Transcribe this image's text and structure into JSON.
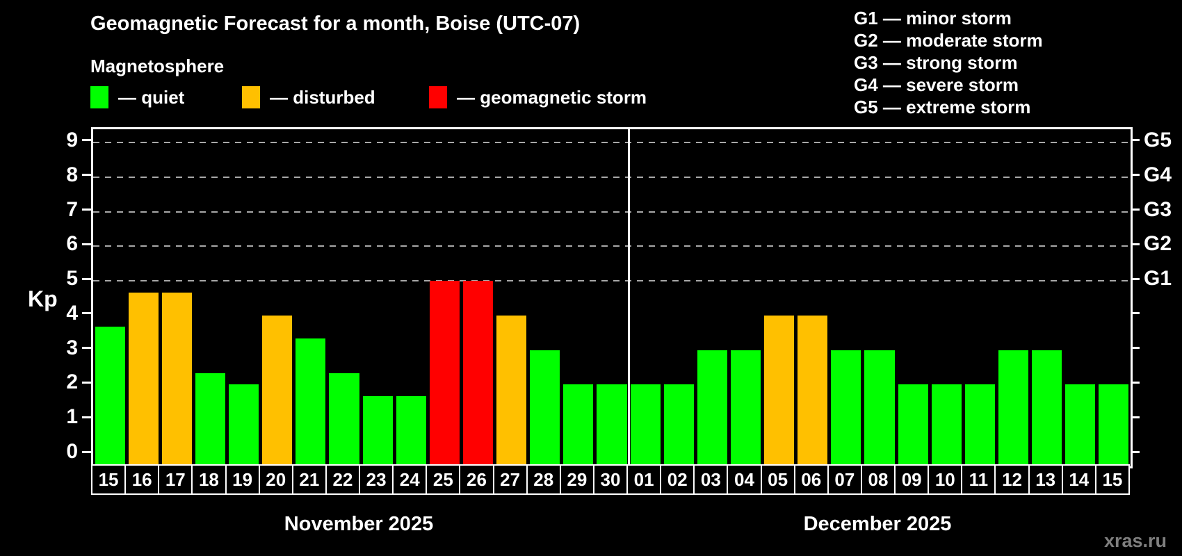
{
  "title": "Geomagnetic Forecast for a month, Boise (UTC-07)",
  "subtitle": "Magnetosphere",
  "watermark": "xras.ru",
  "colors": {
    "quiet": "#00ff00",
    "disturbed": "#ffc000",
    "storm": "#ff0000",
    "background": "#000000",
    "grid": "#a8a8a8",
    "axis": "#ffffff",
    "watermark": "#7f7f7f"
  },
  "legend": {
    "items": [
      {
        "key": "quiet",
        "label": "— quiet"
      },
      {
        "key": "disturbed",
        "label": "— disturbed"
      },
      {
        "key": "storm",
        "label": "— geomagnetic storm"
      }
    ]
  },
  "g_legend": {
    "items": [
      {
        "label": "G1 — minor storm"
      },
      {
        "label": "G2 — moderate storm"
      },
      {
        "label": "G3 — strong storm"
      },
      {
        "label": "G4 — severe storm"
      },
      {
        "label": "G5 — extreme storm"
      }
    ]
  },
  "y_axis": {
    "label": "Kp",
    "ticks": [
      0,
      1,
      2,
      3,
      4,
      5,
      6,
      7,
      8,
      9
    ]
  },
  "right_axis": {
    "tick_kps": [
      0,
      1,
      2,
      3,
      4,
      5,
      6,
      7,
      8,
      9
    ],
    "labels": [
      {
        "kp": 5,
        "label": "G1"
      },
      {
        "kp": 6,
        "label": "G2"
      },
      {
        "kp": 7,
        "label": "G3"
      },
      {
        "kp": 8,
        "label": "G4"
      },
      {
        "kp": 9,
        "label": "G5"
      }
    ]
  },
  "months": [
    {
      "label": "November 2025",
      "days": [
        {
          "day": "15",
          "kp": 3.67,
          "status": "quiet"
        },
        {
          "day": "16",
          "kp": 4.67,
          "status": "disturbed"
        },
        {
          "day": "17",
          "kp": 4.67,
          "status": "disturbed"
        },
        {
          "day": "18",
          "kp": 2.33,
          "status": "quiet"
        },
        {
          "day": "19",
          "kp": 2.0,
          "status": "quiet"
        },
        {
          "day": "20",
          "kp": 4.0,
          "status": "disturbed"
        },
        {
          "day": "21",
          "kp": 3.33,
          "status": "quiet"
        },
        {
          "day": "22",
          "kp": 2.33,
          "status": "quiet"
        },
        {
          "day": "23",
          "kp": 1.67,
          "status": "quiet"
        },
        {
          "day": "24",
          "kp": 1.67,
          "status": "quiet"
        },
        {
          "day": "25",
          "kp": 5.0,
          "status": "storm"
        },
        {
          "day": "26",
          "kp": 5.0,
          "status": "storm"
        },
        {
          "day": "27",
          "kp": 4.0,
          "status": "disturbed"
        },
        {
          "day": "28",
          "kp": 3.0,
          "status": "quiet"
        },
        {
          "day": "29",
          "kp": 2.0,
          "status": "quiet"
        },
        {
          "day": "30",
          "kp": 2.0,
          "status": "quiet"
        }
      ]
    },
    {
      "label": "December 2025",
      "days": [
        {
          "day": "01",
          "kp": 2.0,
          "status": "quiet"
        },
        {
          "day": "02",
          "kp": 2.0,
          "status": "quiet"
        },
        {
          "day": "03",
          "kp": 3.0,
          "status": "quiet"
        },
        {
          "day": "04",
          "kp": 3.0,
          "status": "quiet"
        },
        {
          "day": "05",
          "kp": 4.0,
          "status": "disturbed"
        },
        {
          "day": "06",
          "kp": 4.0,
          "status": "disturbed"
        },
        {
          "day": "07",
          "kp": 3.0,
          "status": "quiet"
        },
        {
          "day": "08",
          "kp": 3.0,
          "status": "quiet"
        },
        {
          "day": "09",
          "kp": 2.0,
          "status": "quiet"
        },
        {
          "day": "10",
          "kp": 2.0,
          "status": "quiet"
        },
        {
          "day": "11",
          "kp": 2.0,
          "status": "quiet"
        },
        {
          "day": "12",
          "kp": 3.0,
          "status": "quiet"
        },
        {
          "day": "13",
          "kp": 3.0,
          "status": "quiet"
        },
        {
          "day": "14",
          "kp": 2.0,
          "status": "quiet"
        },
        {
          "day": "15",
          "kp": 2.0,
          "status": "quiet"
        }
      ]
    }
  ],
  "chart_data": {
    "type": "bar",
    "title": "Geomagnetic Forecast for a month, Boise (UTC-07)",
    "xlabel": "",
    "ylabel": "Kp",
    "ylim": [
      0,
      9
    ],
    "grid": "dashed horizontal gridlines at Kp 5,6,7,8,9 only",
    "legend_position": "top-left (quiet/disturbed/storm), top-right (G1-G5 scale)",
    "right_axis_labels": {
      "5": "G1",
      "6": "G2",
      "7": "G3",
      "8": "G4",
      "9": "G5"
    },
    "categories": [
      "Nov 15",
      "Nov 16",
      "Nov 17",
      "Nov 18",
      "Nov 19",
      "Nov 20",
      "Nov 21",
      "Nov 22",
      "Nov 23",
      "Nov 24",
      "Nov 25",
      "Nov 26",
      "Nov 27",
      "Nov 28",
      "Nov 29",
      "Nov 30",
      "Dec 01",
      "Dec 02",
      "Dec 03",
      "Dec 04",
      "Dec 05",
      "Dec 06",
      "Dec 07",
      "Dec 08",
      "Dec 09",
      "Dec 10",
      "Dec 11",
      "Dec 12",
      "Dec 13",
      "Dec 14",
      "Dec 15"
    ],
    "series": [
      {
        "name": "Kp forecast",
        "values": [
          3.67,
          4.67,
          4.67,
          2.33,
          2.0,
          4.0,
          3.33,
          2.33,
          1.67,
          1.67,
          5.0,
          5.0,
          4.0,
          3.0,
          2.0,
          2.0,
          2.0,
          2.0,
          3.0,
          3.0,
          4.0,
          4.0,
          3.0,
          3.0,
          2.0,
          2.0,
          2.0,
          3.0,
          3.0,
          2.0,
          2.0
        ]
      }
    ],
    "statuses": [
      "quiet",
      "disturbed",
      "disturbed",
      "quiet",
      "quiet",
      "disturbed",
      "quiet",
      "quiet",
      "quiet",
      "quiet",
      "storm",
      "storm",
      "disturbed",
      "quiet",
      "quiet",
      "quiet",
      "quiet",
      "quiet",
      "quiet",
      "quiet",
      "disturbed",
      "disturbed",
      "quiet",
      "quiet",
      "quiet",
      "quiet",
      "quiet",
      "quiet",
      "quiet",
      "quiet",
      "quiet"
    ]
  }
}
